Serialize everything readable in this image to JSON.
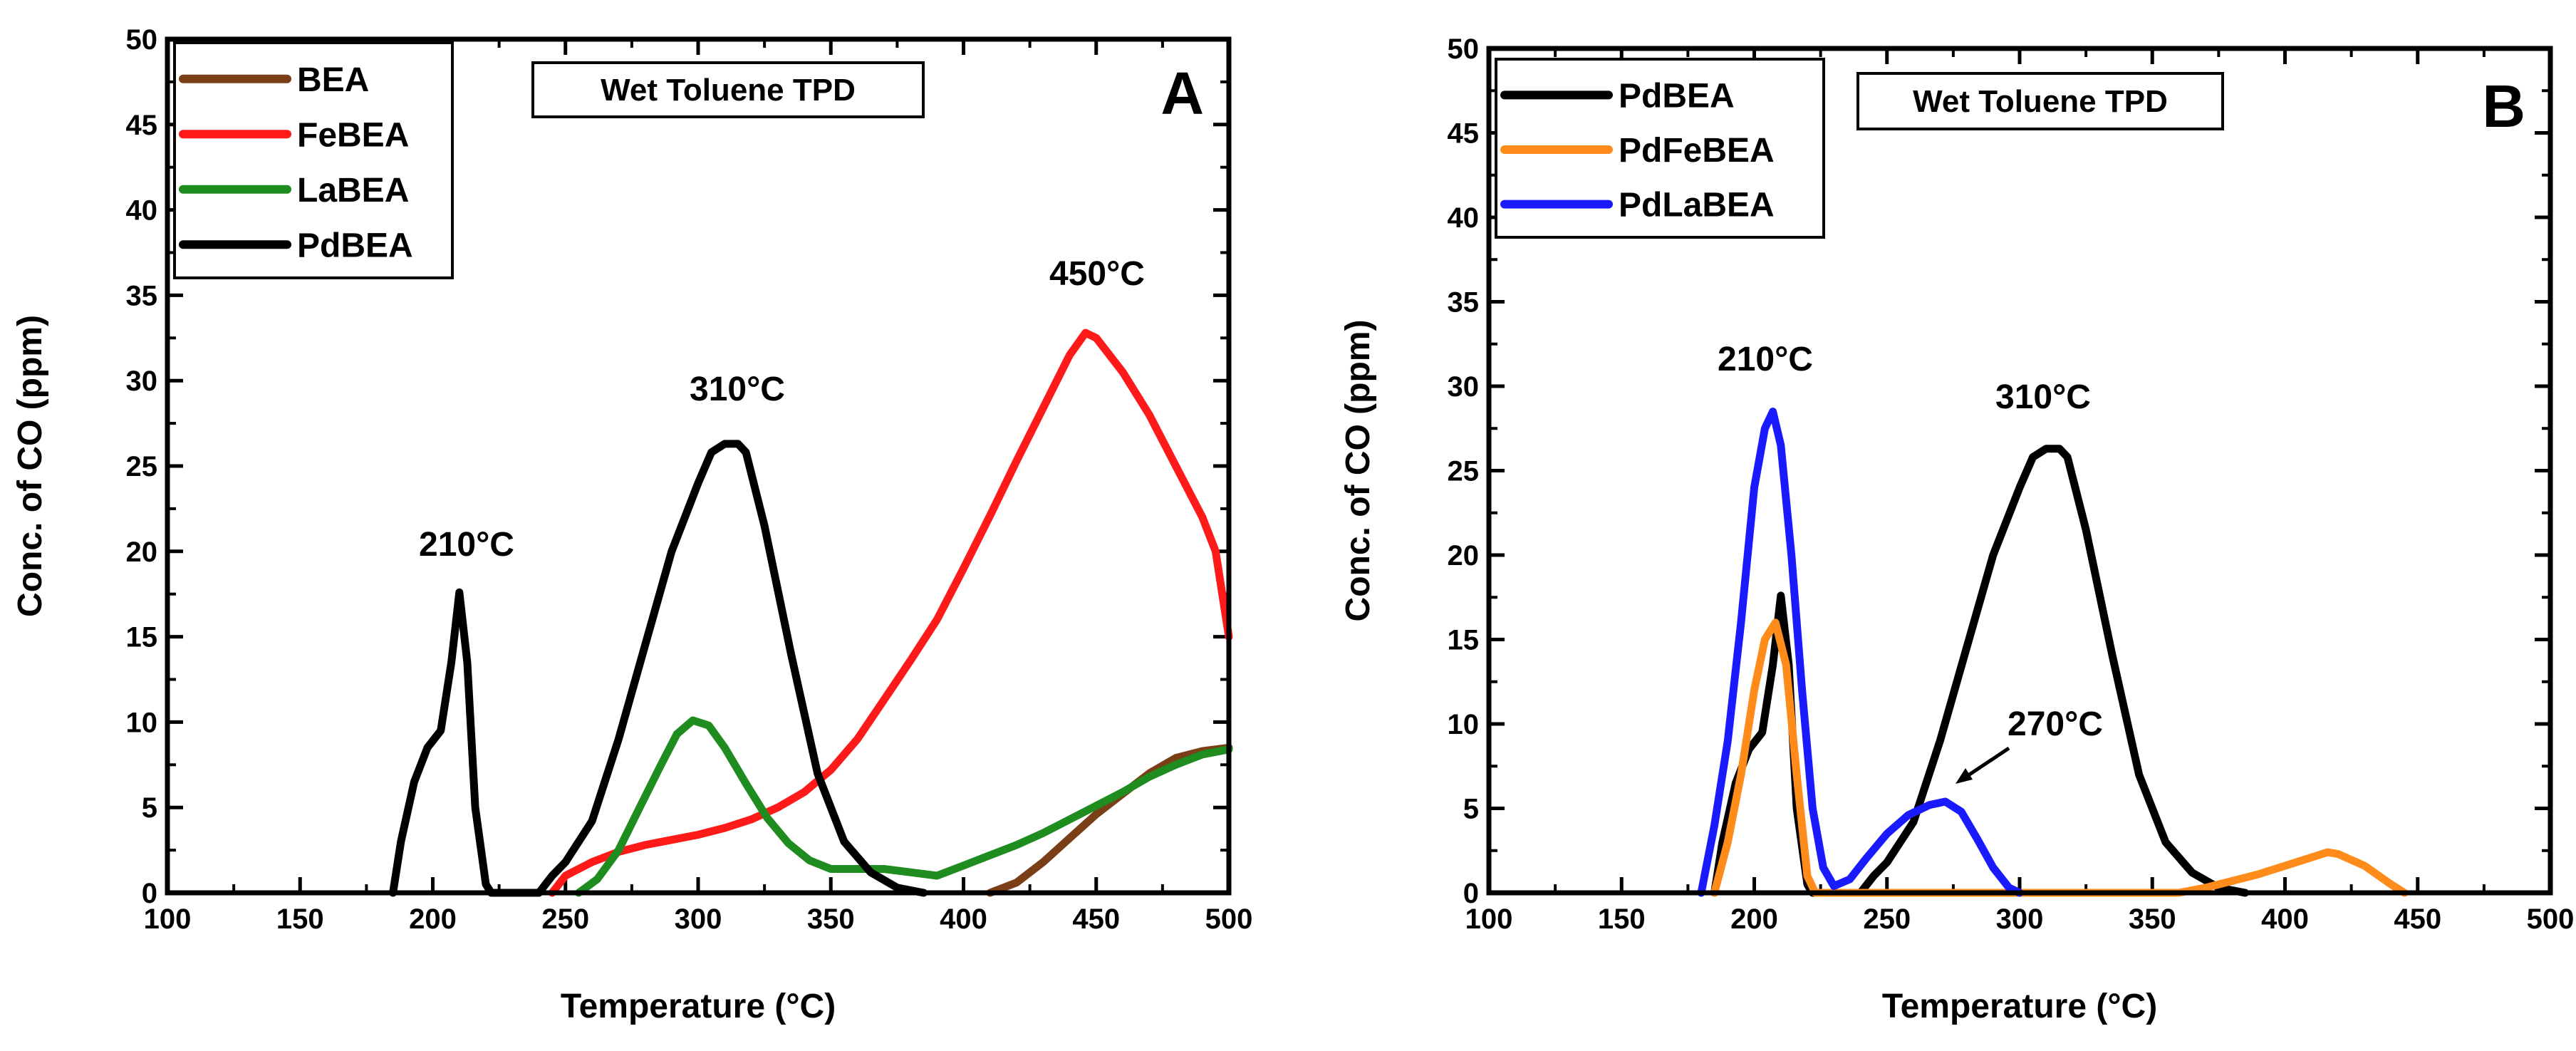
{
  "chart_data": [
    {
      "panel": "A",
      "type": "line",
      "title_box": "Wet Toluene TPD",
      "xlabel": "Temperature (°C)",
      "ylabel": "Conc. of CO (ppm)",
      "xlim": [
        100,
        500
      ],
      "ylim": [
        0,
        50
      ],
      "x_ticks": [
        100,
        150,
        200,
        250,
        300,
        350,
        400,
        450,
        500
      ],
      "y_ticks": [
        0,
        5,
        10,
        15,
        20,
        25,
        30,
        35,
        40,
        45,
        50
      ],
      "x_tick_labels": [
        "100",
        "150",
        "200",
        "250",
        "300",
        "350",
        "400",
        "450",
        "500"
      ],
      "y_tick_labels": [
        "0",
        "5",
        "10",
        "15",
        "20",
        "25",
        "30",
        "35",
        "40",
        "45",
        "50"
      ],
      "legend_location": "top-left",
      "series": [
        {
          "name": "BEA",
          "color": "#7B3F18",
          "x": [
            410,
            420,
            430,
            440,
            450,
            460,
            470,
            480,
            490,
            500
          ],
          "y": [
            0,
            0.6,
            1.8,
            3.2,
            4.6,
            5.8,
            7.0,
            7.9,
            8.3,
            8.5
          ]
        },
        {
          "name": "FeBEA",
          "color": "#FF1A1A",
          "x": [
            245,
            250,
            260,
            270,
            280,
            290,
            300,
            310,
            320,
            330,
            340,
            350,
            360,
            370,
            380,
            390,
            400,
            410,
            420,
            430,
            440,
            446,
            450,
            460,
            470,
            480,
            490,
            495,
            500
          ],
          "y": [
            0,
            1.0,
            1.8,
            2.4,
            2.8,
            3.1,
            3.4,
            3.8,
            4.3,
            5.0,
            5.9,
            7.2,
            9.0,
            11.3,
            13.6,
            16.0,
            19.0,
            22.1,
            25.3,
            28.4,
            31.5,
            32.8,
            32.5,
            30.5,
            28.0,
            25.0,
            22.0,
            20.0,
            15.0
          ]
        },
        {
          "name": "LaBEA",
          "color": "#1E8C1E",
          "x": [
            255,
            262,
            270,
            278,
            286,
            292,
            298,
            304,
            310,
            318,
            326,
            334,
            342,
            350,
            360,
            370,
            380,
            390,
            400,
            410,
            420,
            430,
            440,
            450,
            460,
            470,
            480,
            490,
            500
          ],
          "y": [
            0,
            0.8,
            2.5,
            5.0,
            7.5,
            9.3,
            10.1,
            9.8,
            8.5,
            6.4,
            4.4,
            2.9,
            1.9,
            1.4,
            1.4,
            1.4,
            1.2,
            1.0,
            1.6,
            2.2,
            2.8,
            3.5,
            4.3,
            5.1,
            5.9,
            6.8,
            7.5,
            8.1,
            8.4
          ]
        },
        {
          "name": "PdBEA",
          "color": "#000000",
          "x": [
            185,
            188,
            193,
            198,
            203,
            207,
            210,
            213,
            216,
            220,
            222,
            240,
            245,
            250,
            260,
            270,
            280,
            290,
            300,
            305,
            310,
            315,
            318,
            325,
            335,
            345,
            355,
            365,
            375,
            385
          ],
          "y": [
            0,
            3.0,
            6.5,
            8.5,
            9.5,
            13.5,
            17.6,
            13.5,
            5.0,
            0.5,
            0,
            0,
            1.0,
            1.8,
            4.2,
            9.0,
            14.5,
            20.0,
            24.0,
            25.8,
            26.3,
            26.3,
            25.8,
            21.5,
            14.0,
            7.0,
            3.0,
            1.2,
            0.3,
            0
          ]
        }
      ],
      "annotations": [
        {
          "text": "210°C",
          "x": 210,
          "y": 20.2
        },
        {
          "text": "310°C",
          "x": 310,
          "y": 29.0
        },
        {
          "text": "450°C",
          "x": 450,
          "y": 35.8
        }
      ]
    },
    {
      "panel": "B",
      "type": "line",
      "title_box": "Wet Toluene TPD",
      "xlabel": "Temperature (°C)",
      "ylabel": "Conc. of CO (ppm)",
      "xlim": [
        100,
        500
      ],
      "ylim": [
        0,
        50
      ],
      "x_ticks": [
        100,
        150,
        200,
        250,
        300,
        350,
        400,
        450,
        500
      ],
      "y_ticks": [
        0,
        5,
        10,
        15,
        20,
        25,
        30,
        35,
        40,
        45,
        50
      ],
      "x_tick_labels": [
        "100",
        "150",
        "200",
        "250",
        "300",
        "350",
        "400",
        "450",
        "500"
      ],
      "y_tick_labels": [
        "0",
        "5",
        "10",
        "15",
        "20",
        "25",
        "30",
        "35",
        "40",
        "45",
        "50"
      ],
      "legend_location": "top-left",
      "series": [
        {
          "name": "PdBEA",
          "color": "#000000",
          "x": [
            185,
            188,
            193,
            198,
            203,
            207,
            210,
            213,
            216,
            220,
            222,
            240,
            245,
            250,
            260,
            270,
            280,
            290,
            300,
            305,
            310,
            315,
            318,
            325,
            335,
            345,
            355,
            365,
            375,
            385
          ],
          "y": [
            0,
            3.0,
            6.5,
            8.5,
            9.5,
            13.5,
            17.6,
            13.5,
            5.0,
            0.5,
            0,
            0,
            1.0,
            1.8,
            4.2,
            9.0,
            14.5,
            20.0,
            24.0,
            25.8,
            26.3,
            26.3,
            25.8,
            21.5,
            14.0,
            7.0,
            3.0,
            1.2,
            0.3,
            0
          ]
        },
        {
          "name": "PdFeBEA",
          "color": "#FF8C1A",
          "x": [
            185,
            190,
            195,
            200,
            204,
            208,
            212,
            216,
            220,
            223,
            360,
            370,
            380,
            390,
            400,
            410,
            416,
            420,
            430,
            440,
            445
          ],
          "y": [
            0,
            3.0,
            7.0,
            12.0,
            15.0,
            16.0,
            13.5,
            7.0,
            1.0,
            0,
            0,
            0.3,
            0.7,
            1.1,
            1.6,
            2.1,
            2.4,
            2.3,
            1.6,
            0.5,
            0
          ]
        },
        {
          "name": "PdLaBEA",
          "color": "#1A1AFF",
          "x": [
            180,
            185,
            190,
            195,
            200,
            204,
            207,
            210,
            214,
            218,
            222,
            226,
            230,
            236,
            242,
            250,
            258,
            266,
            272,
            278,
            284,
            290,
            296,
            300
          ],
          "y": [
            0,
            4.0,
            9.0,
            16.0,
            24.0,
            27.5,
            28.5,
            26.5,
            20.0,
            12.0,
            5.0,
            1.5,
            0.4,
            0.8,
            2.0,
            3.5,
            4.6,
            5.2,
            5.4,
            4.8,
            3.2,
            1.5,
            0.3,
            0
          ]
        }
      ],
      "annotations": [
        {
          "text": "210°C",
          "x": 210,
          "y": 30.8
        },
        {
          "text": "310°C",
          "x": 310,
          "y": 29.0
        },
        {
          "text": "270°C",
          "x": 290,
          "y": 9.2
        }
      ]
    }
  ]
}
